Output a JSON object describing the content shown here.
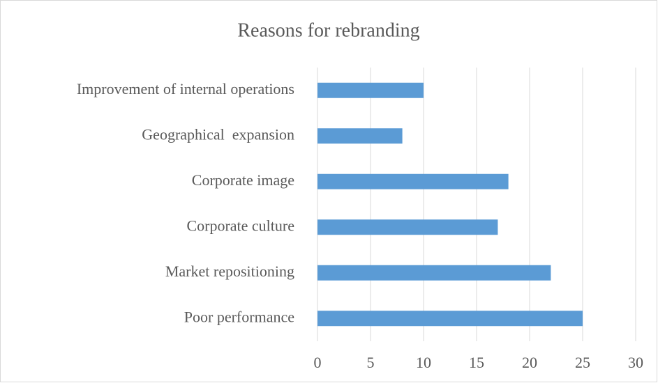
{
  "chart_data": {
    "type": "bar",
    "orientation": "horizontal",
    "title": "Reasons for rebranding",
    "categories": [
      "Improvement of internal operations",
      "Geographical  expansion",
      "Corporate image",
      "Corporate culture",
      "Market repositioning",
      "Poor performance"
    ],
    "values": [
      10,
      8,
      18,
      17,
      22,
      25
    ],
    "color": "#5b9bd5",
    "xlim": [
      0,
      30
    ],
    "xticks": [
      0,
      5,
      10,
      15,
      20,
      25,
      30
    ],
    "grid": true
  }
}
